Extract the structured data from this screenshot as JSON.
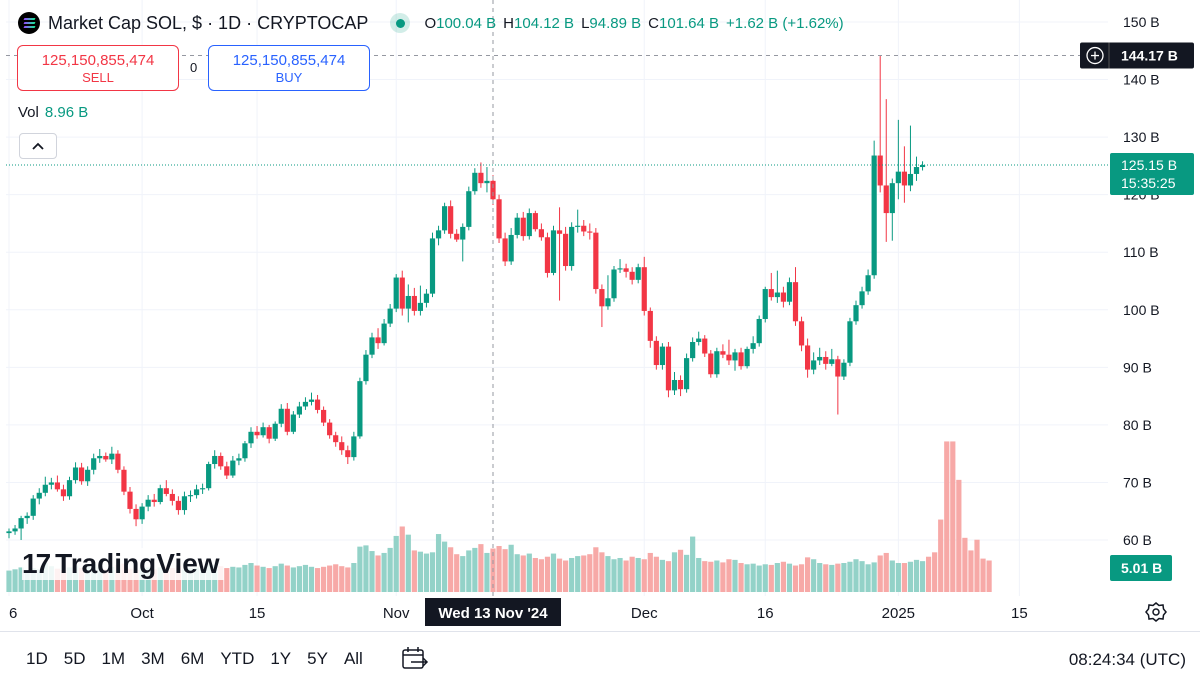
{
  "header": {
    "symbol_title": "Market Cap SOL, $ · 1D · CRYPTOCAP",
    "ohlc": [
      {
        "key": "O",
        "value": "100.04 B"
      },
      {
        "key": "H",
        "value": "104.12 B"
      },
      {
        "key": "L",
        "value": "94.89 B"
      },
      {
        "key": "C",
        "value": "101.64 B"
      },
      {
        "key": "",
        "value": "+1.62 B (+1.62%)"
      }
    ],
    "live_color": "#089981"
  },
  "trade": {
    "sell_price": "125,150,855,474",
    "sell_label": "SELL",
    "buy_price": "125,150,855,474",
    "buy_label": "BUY",
    "spread": "0"
  },
  "volume_legend": {
    "label": "Vol",
    "value": "8.96 B"
  },
  "collapse_icon": "chevron-up-icon",
  "logo": {
    "mark": "17",
    "text": "TradingView"
  },
  "bottom_bar": {
    "ranges": [
      "1D",
      "5D",
      "1M",
      "3M",
      "6M",
      "YTD",
      "1Y",
      "5Y",
      "All"
    ],
    "clock": "08:24:34 (UTC)"
  },
  "colors": {
    "up": "#089981",
    "down": "#f23645",
    "up_vol": "#93d2c8",
    "down_vol": "#f7a9a7"
  },
  "chart_data": {
    "type": "candlestick",
    "title": "Market Cap SOL",
    "y_axis": {
      "ticks": [
        60,
        70,
        80,
        90,
        100,
        110,
        120,
        130,
        140,
        150
      ],
      "unit": "B",
      "range": [
        58,
        152
      ]
    },
    "x_axis": {
      "ticks": [
        {
          "label": "6",
          "index": 0
        },
        {
          "label": "Oct",
          "index": 22
        },
        {
          "label": "15",
          "index": 41
        },
        {
          "label": "Nov",
          "index": 64
        },
        {
          "label": "Dec",
          "index": 105
        },
        {
          "label": "16",
          "index": 125
        },
        {
          "label": "2025",
          "index": 147
        },
        {
          "label": "15",
          "index": 167
        }
      ]
    },
    "crosshair": {
      "date_label": "Wed 13 Nov '24",
      "index": 80,
      "price_label": "144.17 B",
      "price": 144.17
    },
    "last_price": {
      "label": "125.15 B",
      "countdown": "15:35:25",
      "value": 125.15
    },
    "volume_label": "5.01 B",
    "candles": [
      {
        "o": 61.2,
        "h": 62.0,
        "l": 60.3,
        "c": 61.5
      },
      {
        "o": 61.5,
        "h": 62.6,
        "l": 60.9,
        "c": 62.0
      },
      {
        "o": 62.0,
        "h": 64.2,
        "l": 60.0,
        "c": 63.8
      },
      {
        "o": 63.8,
        "h": 64.8,
        "l": 62.8,
        "c": 64.2
      },
      {
        "o": 64.2,
        "h": 67.8,
        "l": 63.5,
        "c": 67.2
      },
      {
        "o": 67.2,
        "h": 69.0,
        "l": 66.2,
        "c": 68.2
      },
      {
        "o": 68.2,
        "h": 71.0,
        "l": 67.6,
        "c": 69.6
      },
      {
        "o": 69.6,
        "h": 70.8,
        "l": 68.8,
        "c": 70.0
      },
      {
        "o": 70.0,
        "h": 71.2,
        "l": 68.4,
        "c": 68.8
      },
      {
        "o": 68.8,
        "h": 69.6,
        "l": 66.8,
        "c": 67.6
      },
      {
        "o": 67.6,
        "h": 71.0,
        "l": 67.0,
        "c": 70.4
      },
      {
        "o": 70.4,
        "h": 73.5,
        "l": 69.8,
        "c": 72.6
      },
      {
        "o": 72.6,
        "h": 73.4,
        "l": 69.6,
        "c": 70.2
      },
      {
        "o": 70.2,
        "h": 72.8,
        "l": 69.4,
        "c": 72.2
      },
      {
        "o": 72.2,
        "h": 75.0,
        "l": 71.4,
        "c": 74.2
      },
      {
        "o": 74.2,
        "h": 75.8,
        "l": 73.4,
        "c": 74.6
      },
      {
        "o": 74.6,
        "h": 75.2,
        "l": 73.6,
        "c": 74.0
      },
      {
        "o": 74.0,
        "h": 76.2,
        "l": 73.2,
        "c": 75.0
      },
      {
        "o": 75.0,
        "h": 75.6,
        "l": 71.6,
        "c": 72.2
      },
      {
        "o": 72.2,
        "h": 72.8,
        "l": 67.8,
        "c": 68.4
      },
      {
        "o": 68.4,
        "h": 69.2,
        "l": 64.6,
        "c": 65.4
      },
      {
        "o": 65.4,
        "h": 66.2,
        "l": 62.4,
        "c": 63.6
      },
      {
        "o": 63.6,
        "h": 66.4,
        "l": 62.8,
        "c": 65.8
      },
      {
        "o": 65.8,
        "h": 67.8,
        "l": 65.0,
        "c": 67.0
      },
      {
        "o": 67.0,
        "h": 68.0,
        "l": 65.8,
        "c": 66.6
      },
      {
        "o": 66.6,
        "h": 69.6,
        "l": 66.2,
        "c": 69.0
      },
      {
        "o": 69.0,
        "h": 70.4,
        "l": 67.6,
        "c": 68.0
      },
      {
        "o": 68.0,
        "h": 68.8,
        "l": 66.0,
        "c": 66.8
      },
      {
        "o": 66.8,
        "h": 67.6,
        "l": 64.4,
        "c": 65.2
      },
      {
        "o": 65.2,
        "h": 68.4,
        "l": 64.4,
        "c": 67.6
      },
      {
        "o": 67.6,
        "h": 68.6,
        "l": 66.6,
        "c": 67.8
      },
      {
        "o": 67.8,
        "h": 69.6,
        "l": 67.2,
        "c": 68.8
      },
      {
        "o": 68.8,
        "h": 69.8,
        "l": 68.0,
        "c": 69.0
      },
      {
        "o": 69.0,
        "h": 73.6,
        "l": 68.6,
        "c": 73.2
      },
      {
        "o": 73.2,
        "h": 75.6,
        "l": 72.4,
        "c": 74.6
      },
      {
        "o": 74.6,
        "h": 75.2,
        "l": 72.2,
        "c": 72.8
      },
      {
        "o": 72.8,
        "h": 73.6,
        "l": 70.6,
        "c": 71.2
      },
      {
        "o": 71.2,
        "h": 74.6,
        "l": 70.8,
        "c": 73.8
      },
      {
        "o": 73.8,
        "h": 75.0,
        "l": 73.0,
        "c": 74.2
      },
      {
        "o": 74.2,
        "h": 77.2,
        "l": 73.6,
        "c": 76.8
      },
      {
        "o": 76.8,
        "h": 79.6,
        "l": 76.0,
        "c": 78.8
      },
      {
        "o": 78.8,
        "h": 79.8,
        "l": 77.6,
        "c": 78.2
      },
      {
        "o": 78.2,
        "h": 80.4,
        "l": 77.8,
        "c": 79.6
      },
      {
        "o": 79.6,
        "h": 80.0,
        "l": 76.8,
        "c": 77.6
      },
      {
        "o": 77.6,
        "h": 80.6,
        "l": 77.2,
        "c": 80.2
      },
      {
        "o": 80.2,
        "h": 83.6,
        "l": 79.6,
        "c": 82.8
      },
      {
        "o": 82.8,
        "h": 83.8,
        "l": 78.2,
        "c": 78.8
      },
      {
        "o": 78.8,
        "h": 82.4,
        "l": 78.4,
        "c": 81.8
      },
      {
        "o": 81.8,
        "h": 84.0,
        "l": 81.2,
        "c": 83.2
      },
      {
        "o": 83.2,
        "h": 84.8,
        "l": 82.6,
        "c": 84.0
      },
      {
        "o": 84.0,
        "h": 85.6,
        "l": 83.4,
        "c": 84.4
      },
      {
        "o": 84.4,
        "h": 85.2,
        "l": 82.0,
        "c": 82.6
      },
      {
        "o": 82.6,
        "h": 83.2,
        "l": 79.8,
        "c": 80.4
      },
      {
        "o": 80.4,
        "h": 81.0,
        "l": 77.6,
        "c": 78.2
      },
      {
        "o": 78.2,
        "h": 78.8,
        "l": 76.2,
        "c": 77.0
      },
      {
        "o": 77.0,
        "h": 78.0,
        "l": 74.8,
        "c": 75.6
      },
      {
        "o": 75.6,
        "h": 76.4,
        "l": 73.2,
        "c": 74.4
      },
      {
        "o": 74.4,
        "h": 78.8,
        "l": 73.8,
        "c": 78.0
      },
      {
        "o": 78.0,
        "h": 88.2,
        "l": 77.6,
        "c": 87.6
      },
      {
        "o": 87.6,
        "h": 93.0,
        "l": 87.0,
        "c": 92.2
      },
      {
        "o": 92.2,
        "h": 96.0,
        "l": 91.6,
        "c": 95.2
      },
      {
        "o": 95.2,
        "h": 96.8,
        "l": 93.2,
        "c": 94.2
      },
      {
        "o": 94.2,
        "h": 98.4,
        "l": 93.8,
        "c": 97.6
      },
      {
        "o": 97.6,
        "h": 101.0,
        "l": 97.0,
        "c": 100.2
      },
      {
        "o": 100.2,
        "h": 106.2,
        "l": 99.6,
        "c": 105.6
      },
      {
        "o": 105.6,
        "h": 106.8,
        "l": 99.0,
        "c": 100.2
      },
      {
        "o": 100.2,
        "h": 104.4,
        "l": 97.8,
        "c": 102.4
      },
      {
        "o": 102.4,
        "h": 103.8,
        "l": 99.0,
        "c": 99.8
      },
      {
        "o": 99.8,
        "h": 104.2,
        "l": 99.0,
        "c": 101.2
      },
      {
        "o": 101.2,
        "h": 103.6,
        "l": 100.4,
        "c": 102.8
      },
      {
        "o": 102.8,
        "h": 113.4,
        "l": 102.2,
        "c": 112.4
      },
      {
        "o": 112.4,
        "h": 114.6,
        "l": 111.2,
        "c": 113.8
      },
      {
        "o": 113.8,
        "h": 118.6,
        "l": 113.2,
        "c": 118.0
      },
      {
        "o": 118.0,
        "h": 119.0,
        "l": 112.4,
        "c": 113.2
      },
      {
        "o": 113.2,
        "h": 114.0,
        "l": 111.8,
        "c": 112.2
      },
      {
        "o": 112.2,
        "h": 115.0,
        "l": 108.4,
        "c": 114.4
      },
      {
        "o": 114.4,
        "h": 121.4,
        "l": 113.8,
        "c": 120.6
      },
      {
        "o": 120.6,
        "h": 124.6,
        "l": 120.0,
        "c": 123.8
      },
      {
        "o": 123.8,
        "h": 125.6,
        "l": 121.2,
        "c": 122.0
      },
      {
        "o": 122.0,
        "h": 124.8,
        "l": 120.4,
        "c": 122.4
      },
      {
        "o": 122.4,
        "h": 123.4,
        "l": 118.2,
        "c": 119.2
      },
      {
        "o": 119.2,
        "h": 120.0,
        "l": 111.6,
        "c": 112.4
      },
      {
        "o": 112.4,
        "h": 113.4,
        "l": 107.6,
        "c": 108.4
      },
      {
        "o": 108.4,
        "h": 114.2,
        "l": 107.8,
        "c": 113.0
      },
      {
        "o": 113.0,
        "h": 116.8,
        "l": 112.4,
        "c": 116.0
      },
      {
        "o": 116.0,
        "h": 117.0,
        "l": 112.0,
        "c": 112.8
      },
      {
        "o": 112.8,
        "h": 117.6,
        "l": 112.2,
        "c": 116.8
      },
      {
        "o": 116.8,
        "h": 117.2,
        "l": 113.6,
        "c": 114.0
      },
      {
        "o": 114.0,
        "h": 115.0,
        "l": 112.0,
        "c": 112.6
      },
      {
        "o": 112.6,
        "h": 113.4,
        "l": 105.6,
        "c": 106.4
      },
      {
        "o": 106.4,
        "h": 114.6,
        "l": 106.0,
        "c": 113.8
      },
      {
        "o": 113.8,
        "h": 117.8,
        "l": 101.6,
        "c": 113.2
      },
      {
        "o": 113.2,
        "h": 114.4,
        "l": 106.8,
        "c": 107.6
      },
      {
        "o": 107.6,
        "h": 115.2,
        "l": 106.8,
        "c": 114.4
      },
      {
        "o": 114.4,
        "h": 117.4,
        "l": 113.4,
        "c": 114.6
      },
      {
        "o": 114.6,
        "h": 115.6,
        "l": 112.8,
        "c": 113.6
      },
      {
        "o": 113.6,
        "h": 115.0,
        "l": 112.2,
        "c": 113.4
      },
      {
        "o": 113.4,
        "h": 114.2,
        "l": 102.8,
        "c": 103.6
      },
      {
        "o": 103.6,
        "h": 104.4,
        "l": 97.0,
        "c": 100.6
      },
      {
        "o": 100.6,
        "h": 106.0,
        "l": 100.0,
        "c": 102.0
      },
      {
        "o": 102.0,
        "h": 107.6,
        "l": 101.4,
        "c": 107.0
      },
      {
        "o": 107.0,
        "h": 108.8,
        "l": 106.4,
        "c": 107.2
      },
      {
        "o": 107.2,
        "h": 108.0,
        "l": 105.6,
        "c": 106.6
      },
      {
        "o": 106.6,
        "h": 107.4,
        "l": 104.4,
        "c": 105.2
      },
      {
        "o": 105.2,
        "h": 108.0,
        "l": 104.6,
        "c": 107.4
      },
      {
        "o": 107.4,
        "h": 109.2,
        "l": 99.0,
        "c": 99.8
      },
      {
        "o": 99.8,
        "h": 100.4,
        "l": 93.4,
        "c": 94.6
      },
      {
        "o": 94.6,
        "h": 95.4,
        "l": 89.6,
        "c": 90.4
      },
      {
        "o": 90.4,
        "h": 94.2,
        "l": 89.6,
        "c": 93.6
      },
      {
        "o": 93.6,
        "h": 94.4,
        "l": 84.8,
        "c": 86.0
      },
      {
        "o": 86.0,
        "h": 89.2,
        "l": 85.2,
        "c": 87.8
      },
      {
        "o": 87.8,
        "h": 88.6,
        "l": 85.0,
        "c": 86.2
      },
      {
        "o": 86.2,
        "h": 92.4,
        "l": 85.6,
        "c": 91.6
      },
      {
        "o": 91.6,
        "h": 95.2,
        "l": 91.0,
        "c": 94.4
      },
      {
        "o": 94.4,
        "h": 96.2,
        "l": 93.8,
        "c": 95.0
      },
      {
        "o": 95.0,
        "h": 95.6,
        "l": 91.8,
        "c": 92.4
      },
      {
        "o": 92.4,
        "h": 93.0,
        "l": 88.2,
        "c": 88.8
      },
      {
        "o": 88.8,
        "h": 93.4,
        "l": 88.2,
        "c": 92.8
      },
      {
        "o": 92.8,
        "h": 94.0,
        "l": 91.6,
        "c": 92.2
      },
      {
        "o": 92.2,
        "h": 94.8,
        "l": 90.4,
        "c": 91.2
      },
      {
        "o": 91.2,
        "h": 93.2,
        "l": 89.4,
        "c": 92.6
      },
      {
        "o": 92.6,
        "h": 93.4,
        "l": 89.6,
        "c": 90.2
      },
      {
        "o": 90.2,
        "h": 93.6,
        "l": 89.8,
        "c": 93.2
      },
      {
        "o": 93.2,
        "h": 95.4,
        "l": 92.4,
        "c": 94.2
      },
      {
        "o": 94.2,
        "h": 99.0,
        "l": 93.6,
        "c": 98.4
      },
      {
        "o": 98.4,
        "h": 104.0,
        "l": 97.8,
        "c": 103.6
      },
      {
        "o": 103.6,
        "h": 106.4,
        "l": 101.6,
        "c": 102.2
      },
      {
        "o": 102.2,
        "h": 106.8,
        "l": 101.2,
        "c": 103.0
      },
      {
        "o": 103.0,
        "h": 104.0,
        "l": 100.4,
        "c": 101.4
      },
      {
        "o": 101.4,
        "h": 105.6,
        "l": 100.8,
        "c": 104.8
      },
      {
        "o": 104.8,
        "h": 107.4,
        "l": 97.2,
        "c": 98.0
      },
      {
        "o": 98.0,
        "h": 98.8,
        "l": 92.8,
        "c": 93.8
      },
      {
        "o": 93.8,
        "h": 95.0,
        "l": 88.2,
        "c": 89.6
      },
      {
        "o": 89.6,
        "h": 92.6,
        "l": 88.8,
        "c": 91.2
      },
      {
        "o": 91.2,
        "h": 93.4,
        "l": 90.4,
        "c": 91.8
      },
      {
        "o": 91.8,
        "h": 92.8,
        "l": 89.6,
        "c": 90.6
      },
      {
        "o": 90.6,
        "h": 93.2,
        "l": 90.2,
        "c": 91.4
      },
      {
        "o": 91.4,
        "h": 92.0,
        "l": 81.8,
        "c": 88.4
      },
      {
        "o": 88.4,
        "h": 91.4,
        "l": 87.8,
        "c": 90.8
      },
      {
        "o": 90.8,
        "h": 98.6,
        "l": 90.2,
        "c": 98.0
      },
      {
        "o": 98.0,
        "h": 101.6,
        "l": 97.4,
        "c": 100.8
      },
      {
        "o": 100.8,
        "h": 104.0,
        "l": 100.2,
        "c": 103.2
      },
      {
        "o": 103.2,
        "h": 107.0,
        "l": 102.6,
        "c": 106.0
      },
      {
        "o": 106.0,
        "h": 129.4,
        "l": 105.4,
        "c": 126.8
      },
      {
        "o": 126.8,
        "h": 144.2,
        "l": 120.4,
        "c": 121.6
      },
      {
        "o": 121.6,
        "h": 136.6,
        "l": 111.8,
        "c": 116.8
      },
      {
        "o": 116.8,
        "h": 122.8,
        "l": 112.0,
        "c": 122.0
      },
      {
        "o": 122.0,
        "h": 133.0,
        "l": 119.2,
        "c": 124.0
      },
      {
        "o": 124.0,
        "h": 128.4,
        "l": 118.6,
        "c": 121.6
      },
      {
        "o": 121.6,
        "h": 132.0,
        "l": 120.6,
        "c": 123.6
      },
      {
        "o": 123.6,
        "h": 126.6,
        "l": 122.4,
        "c": 124.8
      },
      {
        "o": 124.8,
        "h": 125.8,
        "l": 124.2,
        "c": 125.15
      }
    ],
    "volumes": [
      3.4,
      3.6,
      3.9,
      3.5,
      3.8,
      3.6,
      4.6,
      4.1,
      3.7,
      3.5,
      3.9,
      4.2,
      3.8,
      4.1,
      4.4,
      3.9,
      3.6,
      4.0,
      4.3,
      4.5,
      3.7,
      3.5,
      3.8,
      3.9,
      3.6,
      3.9,
      4.0,
      3.8,
      4.2,
      3.6,
      3.8,
      3.9,
      3.7,
      4.4,
      4.3,
      4.1,
      3.8,
      4.0,
      3.9,
      4.3,
      4.6,
      4.2,
      4.0,
      3.8,
      4.1,
      4.5,
      4.2,
      3.9,
      4.1,
      4.3,
      4.0,
      3.8,
      4.0,
      4.2,
      4.4,
      4.1,
      3.9,
      4.6,
      7.2,
      7.4,
      6.5,
      5.8,
      6.2,
      7.0,
      8.9,
      10.4,
      9.1,
      6.6,
      6.4,
      6.1,
      6.3,
      9.2,
      8.0,
      7.1,
      6.0,
      5.7,
      6.6,
      7.0,
      7.6,
      6.2,
      6.9,
      7.3,
      6.8,
      7.5,
      6.0,
      5.8,
      6.1,
      5.4,
      5.2,
      5.6,
      6.1,
      5.3,
      5.0,
      5.4,
      5.7,
      5.8,
      6.0,
      7.1,
      6.3,
      5.7,
      5.2,
      5.4,
      5.0,
      5.6,
      5.4,
      5.2,
      6.2,
      5.6,
      5.1,
      4.9,
      6.3,
      6.7,
      5.9,
      8.8,
      5.4,
      4.9,
      4.8,
      5.0,
      4.7,
      5.2,
      5.1,
      4.6,
      4.4,
      4.5,
      4.2,
      4.4,
      4.3,
      4.6,
      4.8,
      4.5,
      4.2,
      4.4,
      5.5,
      5.2,
      4.6,
      4.4,
      4.3,
      4.5,
      4.6,
      4.8,
      5.2,
      4.9,
      4.4,
      4.7,
      5.8,
      6.2,
      5.0,
      4.6,
      4.6,
      4.8,
      5.1,
      4.9,
      5.6,
      6.3,
      11.5,
      23.9,
      23.9,
      17.8,
      8.6,
      6.6,
      8.3,
      5.3,
      5.0
    ]
  }
}
